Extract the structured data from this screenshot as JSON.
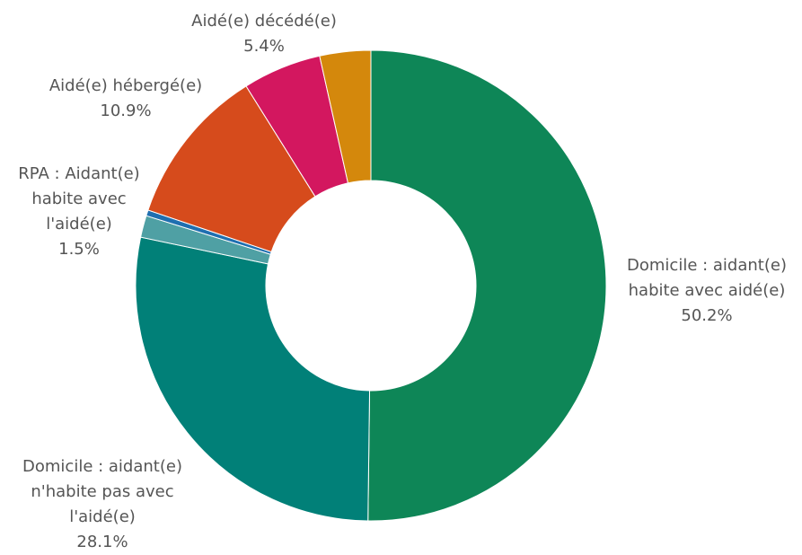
{
  "chart_data": {
    "type": "donut",
    "title": "",
    "slices": [
      {
        "label": "Domicile : aidant(e)\nhabite avec aidé(e)",
        "value_label": "50.2%",
        "value": 50.2,
        "color": "#0e8657",
        "show_label": true
      },
      {
        "label": "Domicile : aidant(e)\nn'habite pas avec\nl'aidé(e)",
        "value_label": "28.1%",
        "value": 28.1,
        "color": "#018078",
        "show_label": true
      },
      {
        "label": "RPA : Aidant(e)\nhabite avec\nl'aidé(e)",
        "value_label": "1.5%",
        "value": 1.5,
        "color": "#4fa0a4",
        "show_label": true
      },
      {
        "label": "",
        "value_label": "",
        "value": 0.4,
        "color": "#1f6fb0",
        "show_label": false
      },
      {
        "label": "Aidé(e) hébergé(e)",
        "value_label": "10.9%",
        "value": 10.9,
        "color": "#d64b1c",
        "show_label": true
      },
      {
        "label": "Aidé(e) décédé(e)",
        "value_label": "5.4%",
        "value": 5.4,
        "color": "#d3175f",
        "show_label": true
      },
      {
        "label": "",
        "value_label": "",
        "value": 3.5,
        "color": "#d4880c",
        "show_label": false
      }
    ],
    "start_angle_deg": 0,
    "direction": "clockwise",
    "legend": "none"
  }
}
